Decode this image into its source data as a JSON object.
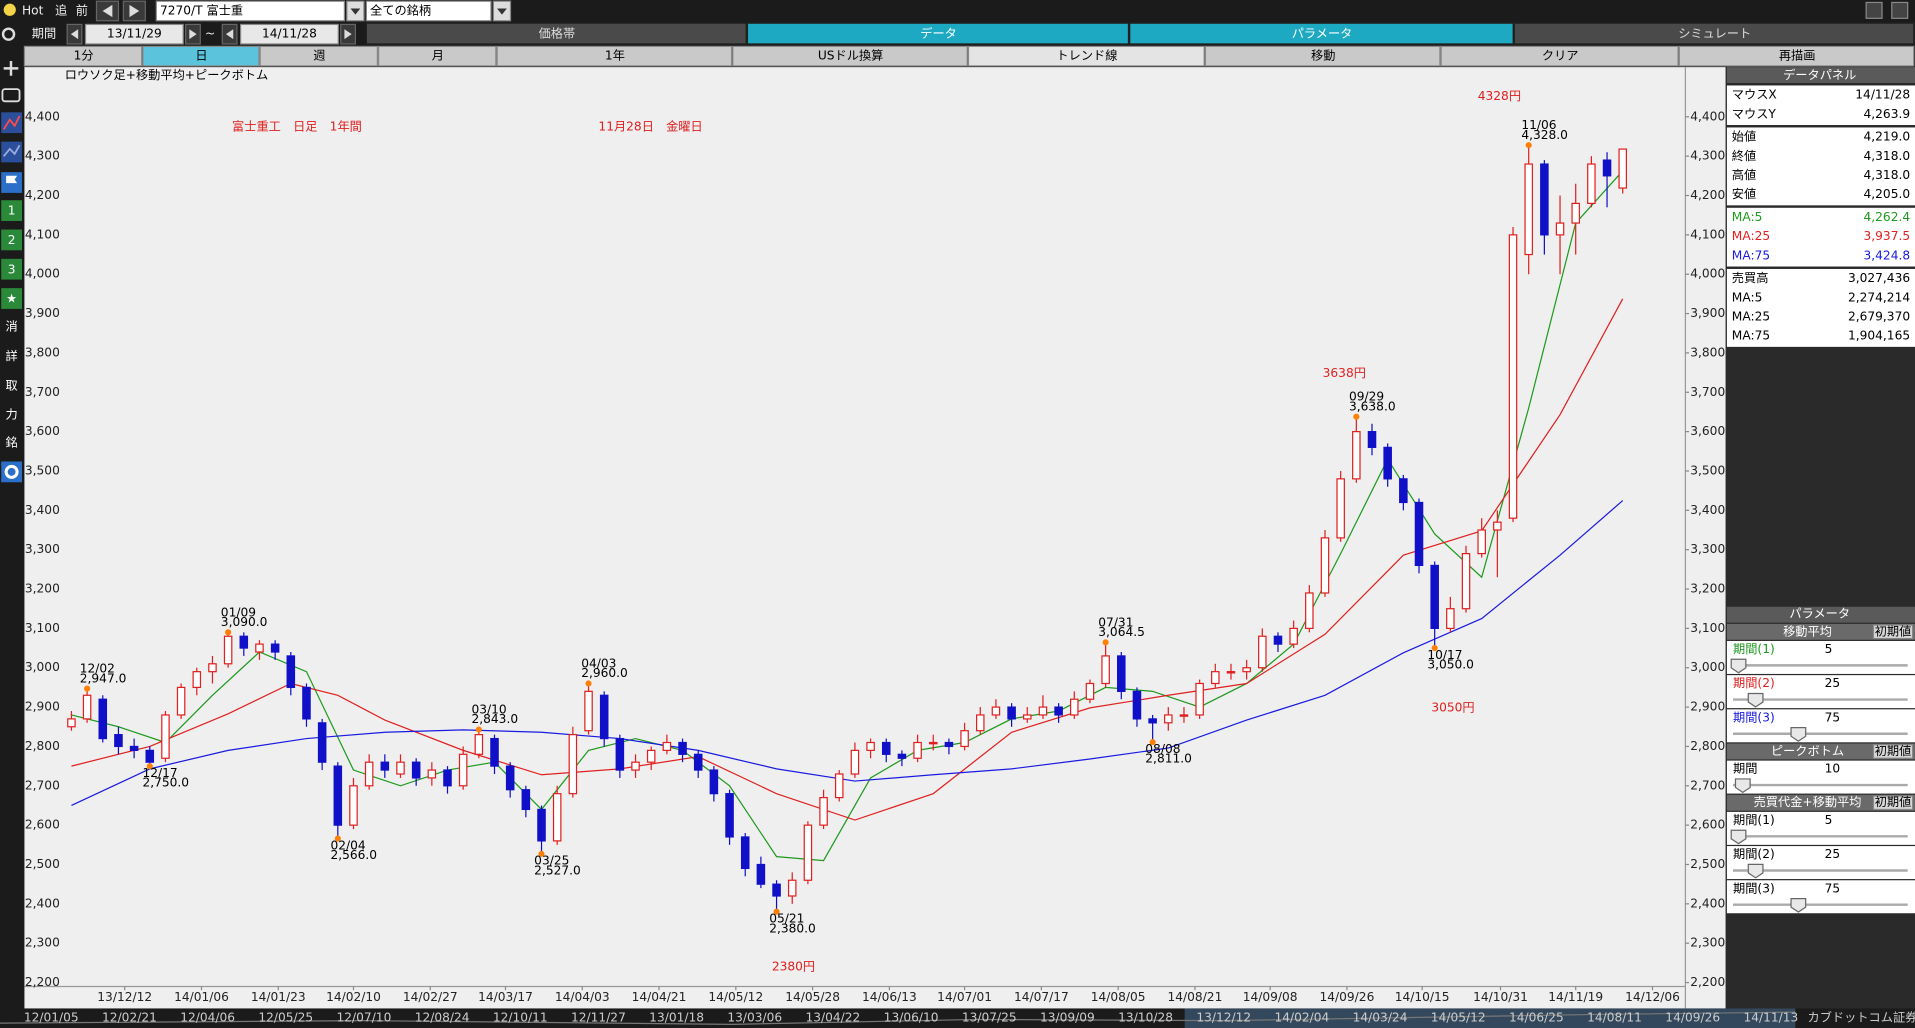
{
  "toolbar": {
    "hot": "Hot",
    "follow": "追",
    "prev": "前",
    "symbol": "7270/T 富士重",
    "universe": "全ての銘柄",
    "period_label": "期間",
    "from": "13/11/29",
    "tilde": "~",
    "to": "14/11/28",
    "tabs": [
      "価格帯",
      "データ",
      "パラメータ",
      "シミュレート"
    ],
    "buttons": [
      "1分",
      "日",
      "週",
      "月",
      "1年",
      "USドル換算",
      "トレンド線",
      "移動",
      "クリア",
      "再描画"
    ]
  },
  "sidebar": [
    "1",
    "2",
    "3",
    "★",
    "消",
    "詳",
    "取",
    "力",
    "銘"
  ],
  "chart_data": {
    "type": "candlestick",
    "title": "ロウソク足+移動平均+ピークボトム",
    "annotations": [
      "富士重工　日足　1年間",
      "11月28日　金曜日",
      "4328円",
      "3638円",
      "3050円",
      "2380円"
    ],
    "candles": [
      [
        2850,
        2890,
        2840,
        2870
      ],
      [
        2870,
        2947,
        2860,
        2930
      ],
      [
        2920,
        2930,
        2810,
        2820
      ],
      [
        2830,
        2850,
        2780,
        2800
      ],
      [
        2800,
        2820,
        2770,
        2790
      ],
      [
        2790,
        2800,
        2750,
        2760
      ],
      [
        2770,
        2890,
        2760,
        2880
      ],
      [
        2880,
        2960,
        2870,
        2950
      ],
      [
        2950,
        3000,
        2930,
        2990
      ],
      [
        2990,
        3030,
        2960,
        3010
      ],
      [
        3010,
        3090,
        3000,
        3080
      ],
      [
        3080,
        3090,
        3030,
        3050
      ],
      [
        3040,
        3070,
        3020,
        3060
      ],
      [
        3060,
        3070,
        3020,
        3040
      ],
      [
        3030,
        3040,
        2930,
        2950
      ],
      [
        2950,
        2960,
        2850,
        2870
      ],
      [
        2860,
        2870,
        2740,
        2760
      ],
      [
        2750,
        2760,
        2566,
        2600
      ],
      [
        2600,
        2720,
        2590,
        2700
      ],
      [
        2700,
        2780,
        2690,
        2760
      ],
      [
        2760,
        2780,
        2720,
        2740
      ],
      [
        2730,
        2780,
        2720,
        2760
      ],
      [
        2760,
        2770,
        2700,
        2720
      ],
      [
        2720,
        2760,
        2700,
        2740
      ],
      [
        2740,
        2750,
        2680,
        2700
      ],
      [
        2700,
        2800,
        2690,
        2780
      ],
      [
        2780,
        2843,
        2770,
        2830
      ],
      [
        2820,
        2830,
        2730,
        2750
      ],
      [
        2750,
        2760,
        2670,
        2690
      ],
      [
        2690,
        2700,
        2620,
        2640
      ],
      [
        2640,
        2650,
        2527,
        2560
      ],
      [
        2560,
        2700,
        2550,
        2680
      ],
      [
        2680,
        2850,
        2670,
        2830
      ],
      [
        2840,
        2960,
        2830,
        2940
      ],
      [
        2930,
        2940,
        2800,
        2820
      ],
      [
        2820,
        2830,
        2720,
        2740
      ],
      [
        2740,
        2780,
        2720,
        2760
      ],
      [
        2760,
        2800,
        2740,
        2790
      ],
      [
        2790,
        2830,
        2780,
        2810
      ],
      [
        2810,
        2820,
        2760,
        2780
      ],
      [
        2780,
        2790,
        2720,
        2740
      ],
      [
        2740,
        2750,
        2660,
        2680
      ],
      [
        2680,
        2690,
        2550,
        2570
      ],
      [
        2570,
        2580,
        2470,
        2490
      ],
      [
        2500,
        2520,
        2440,
        2450
      ],
      [
        2450,
        2460,
        2380,
        2420
      ],
      [
        2420,
        2480,
        2400,
        2460
      ],
      [
        2460,
        2610,
        2450,
        2600
      ],
      [
        2600,
        2690,
        2590,
        2670
      ],
      [
        2670,
        2740,
        2660,
        2730
      ],
      [
        2730,
        2810,
        2720,
        2790
      ],
      [
        2790,
        2820,
        2770,
        2810
      ],
      [
        2810,
        2820,
        2760,
        2780
      ],
      [
        2780,
        2790,
        2750,
        2770
      ],
      [
        2770,
        2830,
        2760,
        2810
      ],
      [
        2810,
        2830,
        2790,
        2810
      ],
      [
        2810,
        2820,
        2780,
        2800
      ],
      [
        2800,
        2860,
        2790,
        2840
      ],
      [
        2840,
        2900,
        2830,
        2880
      ],
      [
        2880,
        2920,
        2870,
        2900
      ],
      [
        2900,
        2910,
        2850,
        2870
      ],
      [
        2870,
        2900,
        2860,
        2880
      ],
      [
        2880,
        2930,
        2870,
        2900
      ],
      [
        2900,
        2910,
        2860,
        2880
      ],
      [
        2880,
        2940,
        2870,
        2920
      ],
      [
        2920,
        2970,
        2910,
        2960
      ],
      [
        2960,
        3064.5,
        2950,
        3030
      ],
      [
        3030,
        3040,
        2920,
        2940
      ],
      [
        2940,
        2950,
        2850,
        2870
      ],
      [
        2870,
        2880,
        2811,
        2860
      ],
      [
        2860,
        2900,
        2840,
        2880
      ],
      [
        2880,
        2900,
        2860,
        2880
      ],
      [
        2880,
        2970,
        2870,
        2960
      ],
      [
        2960,
        3010,
        2950,
        2990
      ],
      [
        2990,
        3010,
        2970,
        2990
      ],
      [
        2990,
        3020,
        2970,
        3000
      ],
      [
        3000,
        3100,
        2990,
        3080
      ],
      [
        3080,
        3090,
        3040,
        3060
      ],
      [
        3060,
        3120,
        3050,
        3100
      ],
      [
        3100,
        3210,
        3090,
        3190
      ],
      [
        3190,
        3350,
        3180,
        3330
      ],
      [
        3330,
        3500,
        3320,
        3480
      ],
      [
        3480,
        3638,
        3470,
        3600
      ],
      [
        3600,
        3620,
        3540,
        3560
      ],
      [
        3560,
        3570,
        3460,
        3480
      ],
      [
        3480,
        3490,
        3400,
        3420
      ],
      [
        3420,
        3430,
        3240,
        3260
      ],
      [
        3260,
        3270,
        3050,
        3100
      ],
      [
        3100,
        3180,
        3090,
        3150
      ],
      [
        3150,
        3310,
        3140,
        3290
      ],
      [
        3290,
        3380,
        3280,
        3350
      ],
      [
        3350,
        3400,
        3230,
        3370
      ],
      [
        3380,
        4120,
        3370,
        4100
      ],
      [
        4050,
        4328,
        4000,
        4280
      ],
      [
        4280,
        4290,
        4050,
        4100
      ],
      [
        4100,
        4200,
        4000,
        4130
      ],
      [
        4130,
        4230,
        4050,
        4180
      ],
      [
        4180,
        4300,
        4170,
        4280
      ],
      [
        4290,
        4310,
        4170,
        4250
      ],
      [
        4219,
        4318,
        4205,
        4318
      ]
    ],
    "series": [
      {
        "color": "#1d9a1d",
        "x": [
          0,
          3,
          6,
          9,
          12,
          15,
          18,
          21,
          24,
          27,
          30,
          33,
          36,
          39,
          42,
          45,
          48,
          51,
          54,
          57,
          60,
          63,
          66,
          69,
          72,
          75,
          78,
          81,
          84,
          87,
          90,
          93,
          96,
          99
        ],
        "values": [
          2880,
          2850,
          2810,
          2930,
          3040,
          2990,
          2740,
          2700,
          2740,
          2760,
          2640,
          2790,
          2820,
          2790,
          2700,
          2520,
          2510,
          2720,
          2790,
          2810,
          2870,
          2890,
          2950,
          2940,
          2900,
          2960,
          3060,
          3290,
          3530,
          3340,
          3230,
          3660,
          4130,
          4262.4
        ]
      },
      {
        "color": "#e02020",
        "x": [
          0,
          5,
          10,
          14,
          17,
          20,
          25,
          30,
          35,
          40,
          45,
          50,
          55,
          60,
          65,
          70,
          75,
          80,
          85,
          90,
          95,
          99
        ],
        "values": [
          2750,
          2800,
          2883,
          2960,
          2930,
          2867,
          2790,
          2728,
          2743,
          2774,
          2680,
          2613,
          2680,
          2836,
          2898,
          2930,
          2960,
          3085,
          3286,
          3348,
          3643,
          3937.5
        ]
      },
      {
        "color": "#1a1ae0",
        "x": [
          0,
          5,
          10,
          15,
          20,
          25,
          30,
          35,
          40,
          45,
          50,
          55,
          60,
          65,
          70,
          75,
          80,
          85,
          90,
          95,
          99
        ],
        "values": [
          2650,
          2743,
          2790,
          2820,
          2836,
          2842,
          2836,
          2820,
          2790,
          2743,
          2712,
          2728,
          2743,
          2768,
          2796,
          2867,
          2930,
          3038,
          3125,
          3286,
          3424.8
        ]
      }
    ],
    "peaks": [
      {
        "index": 1,
        "kind": "peak",
        "date": "12/02",
        "value": 2947,
        "label": "2,947.0"
      },
      {
        "index": 5,
        "kind": "bottom",
        "date": "12/17",
        "value": 2750,
        "label": "2,750.0"
      },
      {
        "index": 10,
        "kind": "peak",
        "date": "01/09",
        "value": 3090,
        "label": "3,090.0"
      },
      {
        "index": 17,
        "kind": "bottom",
        "date": "02/04",
        "value": 2566,
        "label": "2,566.0"
      },
      {
        "index": 26,
        "kind": "peak",
        "date": "03/10",
        "value": 2843,
        "label": "2,843.0"
      },
      {
        "index": 30,
        "kind": "bottom",
        "date": "03/25",
        "value": 2527,
        "label": "2,527.0"
      },
      {
        "index": 33,
        "kind": "peak",
        "date": "04/03",
        "value": 2960,
        "label": "2,960.0"
      },
      {
        "index": 45,
        "kind": "bottom",
        "date": "05/21",
        "value": 2380,
        "label": "2,380.0"
      },
      {
        "index": 66,
        "kind": "peak",
        "date": "07/31",
        "value": 3064.5,
        "label": "3,064.5"
      },
      {
        "index": 69,
        "kind": "bottom",
        "date": "08/08",
        "value": 2811,
        "label": "2,811.0"
      },
      {
        "index": 82,
        "kind": "peak",
        "date": "09/29",
        "value": 3638,
        "label": "3,638.0"
      },
      {
        "index": 87,
        "kind": "bottom",
        "date": "10/17",
        "value": 3050,
        "label": "3,050.0"
      },
      {
        "index": 93,
        "kind": "peak",
        "date": "11/06",
        "value": 4328,
        "label": "4,328.0"
      }
    ],
    "xlim": [
      -3,
      103
    ],
    "ylim": [
      2190,
      4520
    ],
    "xticks": [
      {
        "value": 3.4,
        "label": "13/12/12"
      },
      {
        "value": 8.3,
        "label": "14/01/06"
      },
      {
        "value": 13.2,
        "label": "14/01/23"
      },
      {
        "value": 18,
        "label": "14/02/10"
      },
      {
        "value": 22.9,
        "label": "14/02/27"
      },
      {
        "value": 27.7,
        "label": "14/03/17"
      },
      {
        "value": 32.6,
        "label": "14/04/03"
      },
      {
        "value": 37.5,
        "label": "14/04/21"
      },
      {
        "value": 42.4,
        "label": "14/05/12"
      },
      {
        "value": 47.3,
        "label": "14/05/28"
      },
      {
        "value": 52.2,
        "label": "14/06/13"
      },
      {
        "value": 57,
        "label": "14/07/01"
      },
      {
        "value": 61.9,
        "label": "14/07/17"
      },
      {
        "value": 66.8,
        "label": "14/08/05"
      },
      {
        "value": 71.7,
        "label": "14/08/21"
      },
      {
        "value": 76.5,
        "label": "14/09/08"
      },
      {
        "value": 81.4,
        "label": "14/09/26"
      },
      {
        "value": 86.2,
        "label": "14/10/15"
      },
      {
        "value": 91.2,
        "label": "14/10/31"
      },
      {
        "value": 96,
        "label": "14/11/19"
      },
      {
        "value": 100.9,
        "label": "14/12/06"
      }
    ],
    "yticks": [
      {
        "value": 2200,
        "label": "2,200"
      },
      {
        "value": 2300,
        "label": "2,300"
      },
      {
        "value": 2400,
        "label": "2,400"
      },
      {
        "value": 2500,
        "label": "2,500"
      },
      {
        "value": 2600,
        "label": "2,600"
      },
      {
        "value": 2700,
        "label": "2,700"
      },
      {
        "value": 2800,
        "label": "2,800"
      },
      {
        "value": 2900,
        "label": "2,900"
      },
      {
        "value": 3000,
        "label": "3,000"
      },
      {
        "value": 3100,
        "label": "3,100"
      },
      {
        "value": 3200,
        "label": "3,200"
      },
      {
        "value": 3300,
        "label": "3,300"
      },
      {
        "value": 3400,
        "label": "3,400"
      },
      {
        "value": 3500,
        "label": "3,500"
      },
      {
        "value": 3600,
        "label": "3,600"
      },
      {
        "value": 3700,
        "label": "3,700"
      },
      {
        "value": 3800,
        "label": "3,800"
      },
      {
        "value": 3900,
        "label": "3,900"
      },
      {
        "value": 4000,
        "label": "4,000"
      },
      {
        "value": 4100,
        "label": "4,100"
      },
      {
        "value": 4200,
        "label": "4,200"
      },
      {
        "value": 4300,
        "label": "4,300"
      },
      {
        "value": 4400,
        "label": "4,400"
      }
    ],
    "up_color": "#e02020",
    "down_color": "#1010c8",
    "peak_color": "#ff7f00"
  },
  "data_panel": {
    "title": "データパネル",
    "sections": [
      [
        [
          "マウスX",
          "14/11/28"
        ],
        [
          "マウスY",
          "4,263.9"
        ]
      ],
      [
        [
          "始値",
          "4,219.0"
        ],
        [
          "終値",
          "4,318.0"
        ],
        [
          "高値",
          "4,318.0"
        ],
        [
          "安値",
          "4,205.0"
        ]
      ],
      [
        [
          "MA:5",
          "4,262.4"
        ],
        [
          "MA:25",
          "3,937.5"
        ],
        [
          "MA:75",
          "3,424.8"
        ]
      ],
      [
        [
          "売買高",
          "3,027,436"
        ],
        [
          "MA:5",
          "2,274,214"
        ],
        [
          "MA:25",
          "2,679,370"
        ],
        [
          "MA:75",
          "1,904,165"
        ]
      ]
    ]
  },
  "param_panel": {
    "title": "パラメータ",
    "sections": [
      {
        "title": "移動平均",
        "reset": "初期値",
        "rows": [
          {
            "label": "期間(1)",
            "value": 5
          },
          {
            "label": "期間(2)",
            "value": 25
          },
          {
            "label": "期間(3)",
            "value": 75
          }
        ]
      },
      {
        "title": "ピークボトム",
        "reset": "初期値",
        "rows": [
          {
            "label": "期間",
            "value": 10
          }
        ]
      },
      {
        "title": "売買代金+移動平均",
        "reset": "初期値",
        "rows": [
          {
            "label": "期間(1)",
            "value": 5
          },
          {
            "label": "期間(2)",
            "value": 25
          },
          {
            "label": "期間(3)",
            "value": 75
          }
        ]
      }
    ]
  },
  "navigator": {
    "labels": [
      "12/01/05",
      "12/02/21",
      "12/04/06",
      "12/05/25",
      "12/07/10",
      "12/08/24",
      "12/10/11",
      "12/11/27",
      "13/01/18",
      "13/03/06",
      "13/04/22",
      "13/06/10",
      "13/07/25",
      "13/09/09",
      "13/10/28",
      "13/12/12",
      "14/02/04",
      "14/03/24",
      "14/05/12",
      "14/06/25",
      "14/08/11",
      "14/09/26",
      "14/11/13"
    ],
    "brand": "カブドットコム証券"
  }
}
